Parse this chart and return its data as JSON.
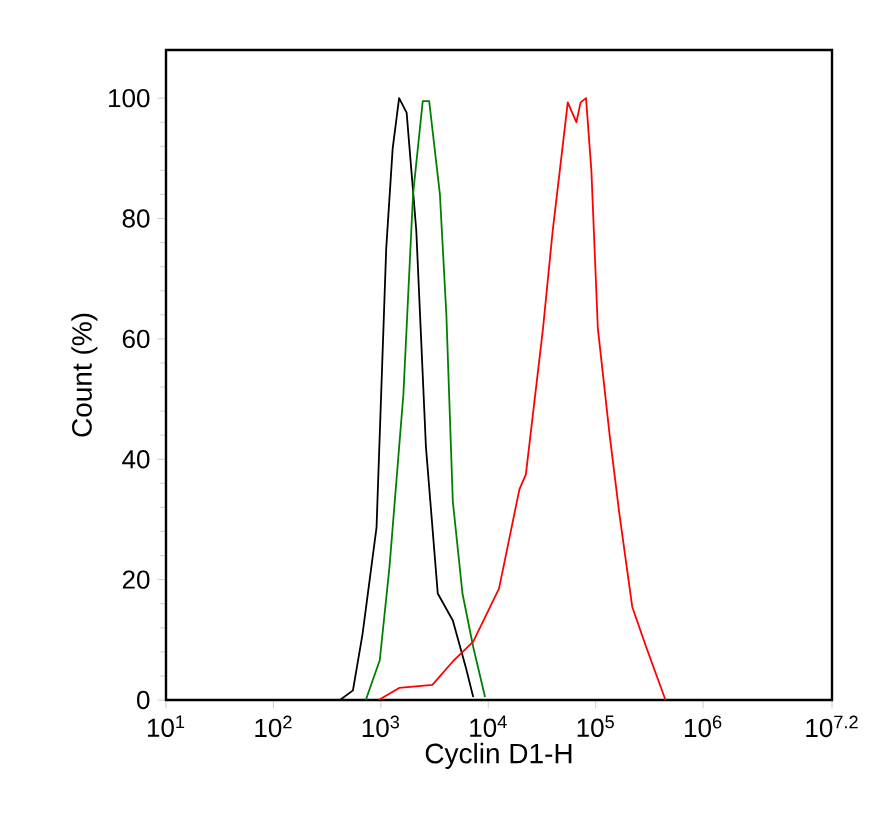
{
  "chart_data": {
    "type": "line",
    "xlabel": "Cyclin D1-H",
    "ylabel": "Count  (%)",
    "log": "x",
    "grid": false,
    "marker": "none",
    "line_style": "solid",
    "xlim": [
      10,
      15848932
    ],
    "ylim": [
      0,
      108
    ],
    "xticks": [
      {
        "value": 10,
        "label": "10$^{1}$"
      },
      {
        "value": 100,
        "label": "10$^{2}$"
      },
      {
        "value": 1000,
        "label": "10$^{3}$"
      },
      {
        "value": 10000,
        "label": "10$^{4}$"
      },
      {
        "value": 100000,
        "label": "10$^{5}$"
      },
      {
        "value": 1000000,
        "label": "10$^{6}$"
      },
      {
        "value": 15848932,
        "label": "10$^{7.2}$"
      }
    ],
    "yticks": [
      0,
      20,
      40,
      60,
      80,
      100
    ],
    "series": [
      {
        "color": "#000000",
        "x": [
          417,
          550,
          676,
          912,
          1122,
          1288,
          1479,
          1738,
          2138,
          2630,
          3388,
          4677,
          6166,
          7244
        ],
        "values": [
          0,
          1.6,
          11,
          28.7,
          75,
          91.6,
          100,
          97.6,
          78,
          42,
          17.7,
          13.2,
          5.5,
          0.5
        ]
      },
      {
        "color": "#008000",
        "x": [
          724,
          977,
          1202,
          1622,
          1995,
          2455,
          2818,
          3548,
          4074,
          4677,
          5754,
          7244,
          9333
        ],
        "values": [
          0,
          6.6,
          22,
          50.8,
          84,
          99.5,
          99.5,
          84,
          64,
          33,
          17.7,
          8.8,
          0.5
        ]
      },
      {
        "color": "#ff0000",
        "x": [
          955,
          1479,
          3020,
          4677,
          7244,
          12590,
          19500,
          22390,
          32360,
          39810,
          48980,
          54950,
          66070,
          72440,
          81280,
          91200,
          104700,
          134900,
          166000,
          218800,
          295100,
          363100,
          446700
        ],
        "values": [
          0,
          2,
          2.5,
          6.4,
          9.7,
          18.5,
          35,
          37.5,
          61.8,
          78,
          91.6,
          99.3,
          96,
          99.3,
          100,
          88,
          61.8,
          44,
          31,
          15.5,
          8.8,
          4.4,
          0
        ]
      }
    ]
  }
}
